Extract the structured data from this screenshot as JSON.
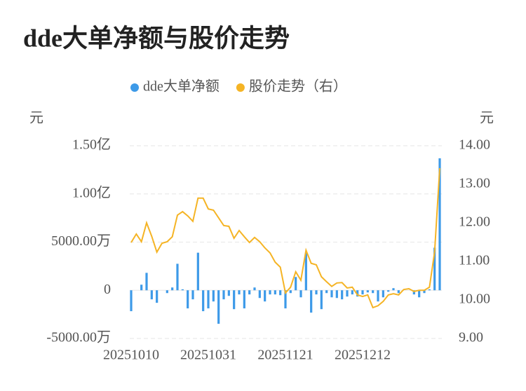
{
  "chart_data": {
    "type": "bar-line",
    "title": "dde大单净额与股价走势",
    "y_unit": "元",
    "y2_unit": "元",
    "categories": [
      "20251010",
      null,
      null,
      null,
      null,
      null,
      null,
      null,
      null,
      null,
      null,
      null,
      null,
      null,
      null,
      "20251031",
      null,
      null,
      null,
      null,
      null,
      null,
      null,
      null,
      null,
      null,
      null,
      null,
      null,
      null,
      "20251121",
      null,
      null,
      null,
      null,
      null,
      null,
      null,
      null,
      null,
      null,
      null,
      null,
      null,
      null,
      "20251212",
      null,
      null,
      null,
      null,
      null,
      null,
      null,
      null,
      null,
      null,
      null,
      null,
      null,
      null,
      null
    ],
    "series": [
      {
        "name": "dde大单净额",
        "type": "bar",
        "color": "#3d9ae8",
        "values": [
          -2170,
          0,
          580,
          1810,
          -940,
          -1300,
          0,
          -290,
          290,
          2750,
          100,
          -1880,
          -940,
          3900,
          -2170,
          -1880,
          -1160,
          -3480,
          -940,
          -580,
          -1960,
          -430,
          -1880,
          -430,
          290,
          -800,
          -1160,
          -430,
          -430,
          -510,
          -1880,
          -290,
          1380,
          -730,
          3900,
          -2320,
          -430,
          -1960,
          -290,
          -730,
          -800,
          -940,
          -650,
          -430,
          -650,
          -430,
          -220,
          -290,
          -1160,
          -730,
          -150,
          220,
          -290,
          0,
          0,
          -430,
          -730,
          -290,
          100,
          4420,
          13700
        ]
      },
      {
        "name": "股价走势（右）",
        "type": "line",
        "axis": "y2",
        "color": "#f5b425",
        "values": [
          11.49,
          11.71,
          11.51,
          12.0,
          11.65,
          11.24,
          11.47,
          11.51,
          11.64,
          12.2,
          12.29,
          12.18,
          12.04,
          12.64,
          12.64,
          12.36,
          12.33,
          12.13,
          11.93,
          11.91,
          11.6,
          11.8,
          11.64,
          11.49,
          11.62,
          11.51,
          11.35,
          11.22,
          10.98,
          10.85,
          10.18,
          10.33,
          10.73,
          10.51,
          11.29,
          10.95,
          10.91,
          10.6,
          10.47,
          10.35,
          10.44,
          10.45,
          10.31,
          10.33,
          10.13,
          10.09,
          10.13,
          9.8,
          9.85,
          9.96,
          10.13,
          10.16,
          10.13,
          10.27,
          10.29,
          10.22,
          10.25,
          10.25,
          10.33,
          11.24,
          13.42
        ]
      }
    ],
    "ylim": [
      -5000,
      15000
    ],
    "yticks": [
      {
        "value": -5000,
        "label": "-5000.00万"
      },
      0,
      {
        "value": 5000,
        "label": "5000.00万"
      },
      {
        "value": 10000,
        "label": "1.00亿"
      },
      {
        "value": 15000,
        "label": "1.50亿"
      }
    ],
    "y2lim": [
      9,
      14
    ],
    "y2ticks": [
      {
        "value": 9,
        "label": "9.00"
      },
      {
        "value": 10,
        "label": "10.00"
      },
      {
        "value": 11,
        "label": "11.00"
      },
      {
        "value": 12,
        "label": "12.00"
      },
      {
        "value": 13,
        "label": "13.00"
      },
      {
        "value": 14,
        "label": "14.00"
      }
    ],
    "grid": true
  }
}
